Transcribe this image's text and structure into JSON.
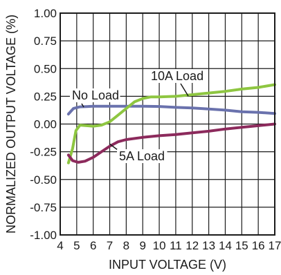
{
  "chart_data": {
    "type": "line",
    "xlabel": "INPUT VOLTAGE (V)",
    "ylabel": "NORMALIZED OUTPUT VOLTAGE (%)",
    "xlim": [
      4,
      17
    ],
    "ylim": [
      -1.0,
      1.0
    ],
    "grid": true,
    "x_ticks": [
      4,
      5,
      6,
      7,
      8,
      9,
      10,
      11,
      12,
      13,
      14,
      15,
      16,
      17
    ],
    "y_ticks": [
      1.0,
      0.75,
      0.5,
      0.25,
      0.0,
      -0.25,
      -0.5,
      -0.75,
      -1.0
    ],
    "y_tick_labels": [
      "1.00",
      "0.75",
      "0.50",
      "0.25",
      "0.00",
      "-0.25",
      "-0.50",
      "-0.75",
      "-1.00"
    ],
    "annotations": [
      {
        "text": "No Load",
        "series": 0
      },
      {
        "text": "10A Load",
        "series": 1
      },
      {
        "text": "5A Load",
        "series": 2
      }
    ],
    "series": [
      {
        "name": "No Load",
        "color": "#6a72ad",
        "points": [
          [
            4.5,
            0.09
          ],
          [
            4.8,
            0.14
          ],
          [
            5.2,
            0.155
          ],
          [
            6,
            0.16
          ],
          [
            7,
            0.16
          ],
          [
            8,
            0.16
          ],
          [
            9,
            0.16
          ],
          [
            10,
            0.158
          ],
          [
            11,
            0.15
          ],
          [
            12,
            0.145
          ],
          [
            13,
            0.135
          ],
          [
            14,
            0.125
          ],
          [
            15,
            0.11
          ],
          [
            16,
            0.105
          ],
          [
            17,
            0.095
          ]
        ]
      },
      {
        "name": "10A Load",
        "color": "#8ec641",
        "points": [
          [
            4.5,
            -0.35
          ],
          [
            4.75,
            -0.22
          ],
          [
            4.95,
            -0.06
          ],
          [
            5.2,
            -0.01
          ],
          [
            5.6,
            -0.015
          ],
          [
            6,
            -0.02
          ],
          [
            6.5,
            -0.01
          ],
          [
            7,
            0.02
          ],
          [
            7.5,
            0.08
          ],
          [
            8,
            0.14
          ],
          [
            8.5,
            0.2
          ],
          [
            9,
            0.23
          ],
          [
            9.5,
            0.245
          ],
          [
            10,
            0.245
          ],
          [
            11,
            0.25
          ],
          [
            12,
            0.265
          ],
          [
            13,
            0.28
          ],
          [
            14,
            0.295
          ],
          [
            15,
            0.315
          ],
          [
            16,
            0.33
          ],
          [
            17,
            0.355
          ]
        ]
      },
      {
        "name": "5A Load",
        "color": "#8c2a5c",
        "points": [
          [
            4.5,
            -0.28
          ],
          [
            4.75,
            -0.33
          ],
          [
            5.1,
            -0.345
          ],
          [
            5.5,
            -0.335
          ],
          [
            6,
            -0.3
          ],
          [
            6.5,
            -0.25
          ],
          [
            7,
            -0.2
          ],
          [
            7.5,
            -0.16
          ],
          [
            8,
            -0.14
          ],
          [
            9,
            -0.12
          ],
          [
            10,
            -0.105
          ],
          [
            11,
            -0.095
          ],
          [
            12,
            -0.08
          ],
          [
            13,
            -0.065
          ],
          [
            14,
            -0.045
          ],
          [
            15,
            -0.03
          ],
          [
            16,
            -0.015
          ],
          [
            17,
            0.0
          ]
        ]
      }
    ]
  }
}
